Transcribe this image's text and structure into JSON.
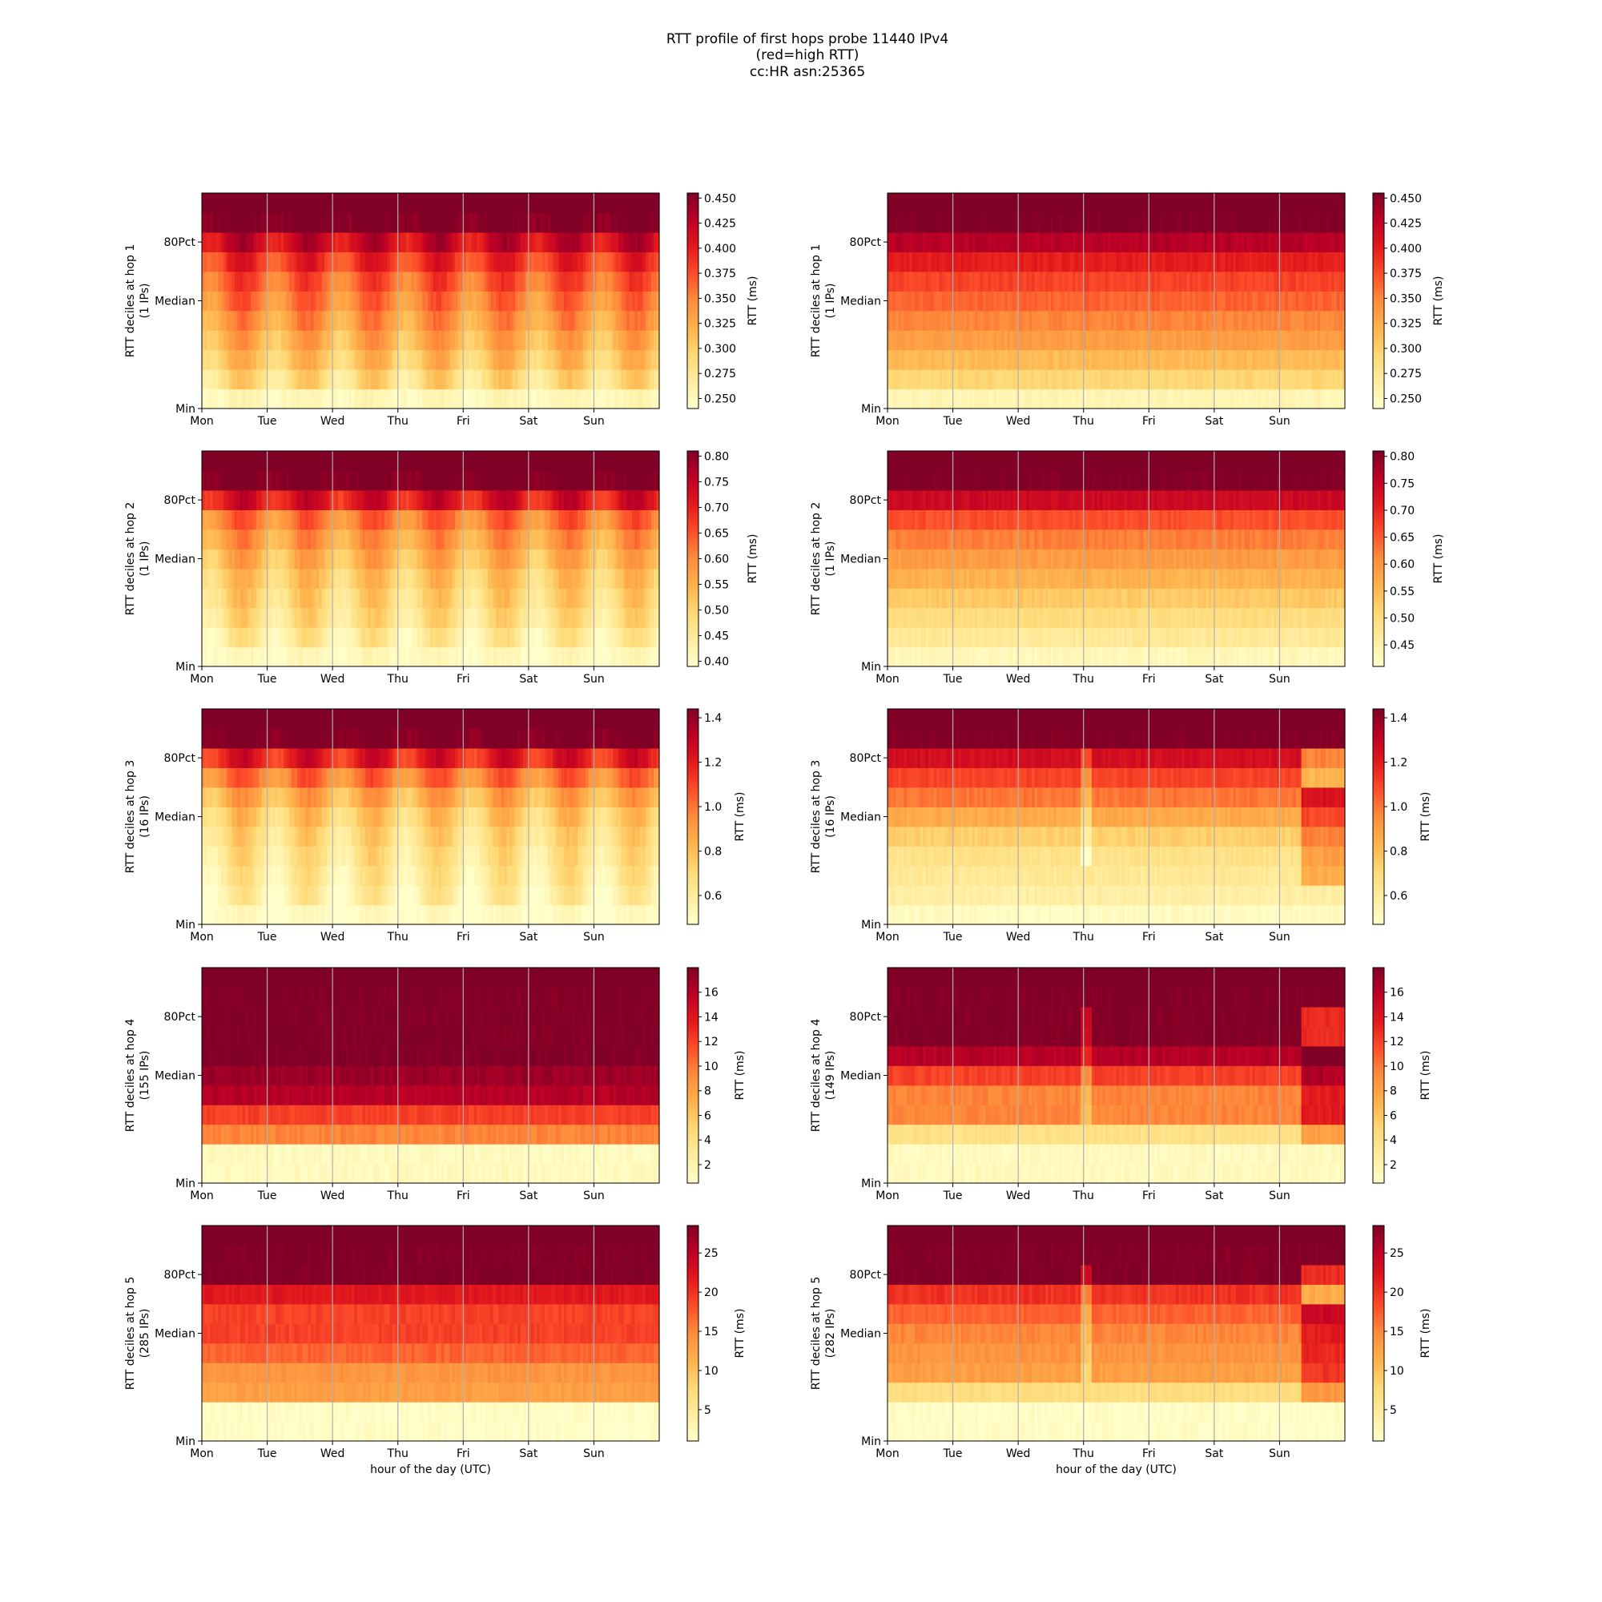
{
  "figure": {
    "title_lines": [
      "RTT profile of first hops probe 11440 IPv4",
      "(red=high RTT)",
      "cc:HR asn:25365"
    ]
  },
  "chart_data": [
    {
      "type": "heatmap",
      "name": "hop1-left",
      "ylabel": [
        "RTT deciles at hop 1",
        "(1 IPs)"
      ],
      "yticks": [
        "80Pct",
        "Median",
        "Min"
      ],
      "xticks": [
        "Mon",
        "Tue",
        "Wed",
        "Thu",
        "Fri",
        "Sat",
        "Sun"
      ],
      "xlabel": "",
      "colorbar": {
        "label": "RTT (ms)",
        "vmin": 0.24,
        "vmax": 0.455,
        "ticks": [
          "0.250",
          "0.275",
          "0.300",
          "0.325",
          "0.350",
          "0.375",
          "0.400",
          "0.425",
          "0.450"
        ]
      },
      "decile_values": [
        0.252,
        0.29,
        0.31,
        0.325,
        0.34,
        0.355,
        0.37,
        0.39,
        0.42,
        0.455
      ],
      "pattern": "diurnal"
    },
    {
      "type": "heatmap",
      "name": "hop1-right",
      "ylabel": [
        "RTT deciles at hop 1",
        "(1 IPs)"
      ],
      "yticks": [
        "80Pct",
        "Median",
        "Min"
      ],
      "xticks": [
        "Mon",
        "Tue",
        "Wed",
        "Thu",
        "Fri",
        "Sat",
        "Sun"
      ],
      "xlabel": "",
      "colorbar": {
        "label": "RTT (ms)",
        "vmin": 0.24,
        "vmax": 0.455,
        "ticks": [
          "0.250",
          "0.275",
          "0.300",
          "0.325",
          "0.350",
          "0.375",
          "0.400",
          "0.425",
          "0.450"
        ]
      },
      "decile_values": [
        0.255,
        0.295,
        0.315,
        0.335,
        0.35,
        0.365,
        0.38,
        0.4,
        0.43,
        0.455
      ],
      "pattern": "flat"
    },
    {
      "type": "heatmap",
      "name": "hop2-left",
      "ylabel": [
        "RTT deciles at hop 2",
        "(1 IPs)"
      ],
      "yticks": [
        "80Pct",
        "Median",
        "Min"
      ],
      "xticks": [
        "Mon",
        "Tue",
        "Wed",
        "Thu",
        "Fri",
        "Sat",
        "Sun"
      ],
      "xlabel": "",
      "colorbar": {
        "label": "RTT (ms)",
        "vmin": 0.39,
        "vmax": 0.81,
        "ticks": [
          "0.40",
          "0.45",
          "0.50",
          "0.55",
          "0.60",
          "0.65",
          "0.70",
          "0.75",
          "0.80"
        ]
      },
      "decile_values": [
        0.41,
        0.45,
        0.48,
        0.5,
        0.52,
        0.55,
        0.58,
        0.62,
        0.72,
        0.81
      ],
      "pattern": "diurnal"
    },
    {
      "type": "heatmap",
      "name": "hop2-right",
      "ylabel": [
        "RTT deciles at hop 2",
        "(1 IPs)"
      ],
      "yticks": [
        "80Pct",
        "Median",
        "Min"
      ],
      "xticks": [
        "Mon",
        "Tue",
        "Wed",
        "Thu",
        "Fri",
        "Sat",
        "Sun"
      ],
      "xlabel": "",
      "colorbar": {
        "label": "RTT (ms)",
        "vmin": 0.41,
        "vmax": 0.81,
        "ticks": [
          "0.45",
          "0.50",
          "0.55",
          "0.60",
          "0.65",
          "0.70",
          "0.75",
          "0.80"
        ]
      },
      "decile_values": [
        0.43,
        0.47,
        0.5,
        0.53,
        0.56,
        0.59,
        0.62,
        0.66,
        0.74,
        0.81
      ],
      "pattern": "flat"
    },
    {
      "type": "heatmap",
      "name": "hop3-left",
      "ylabel": [
        "RTT deciles at hop 3",
        "(16 IPs)"
      ],
      "yticks": [
        "80Pct",
        "Median",
        "Min"
      ],
      "xticks": [
        "Mon",
        "Tue",
        "Wed",
        "Thu",
        "Fri",
        "Sat",
        "Sun"
      ],
      "xlabel": "",
      "colorbar": {
        "label": "RTT (ms)",
        "vmin": 0.47,
        "vmax": 1.44,
        "ticks": [
          "0.6",
          "0.8",
          "1.0",
          "1.2",
          "1.4"
        ]
      },
      "decile_values": [
        0.5,
        0.58,
        0.62,
        0.66,
        0.7,
        0.76,
        0.86,
        1.0,
        1.2,
        1.44
      ],
      "pattern": "diurnal"
    },
    {
      "type": "heatmap",
      "name": "hop3-right",
      "ylabel": [
        "RTT deciles at hop 3",
        "(16 IPs)"
      ],
      "yticks": [
        "80Pct",
        "Median",
        "Min"
      ],
      "xticks": [
        "Mon",
        "Tue",
        "Wed",
        "Thu",
        "Fri",
        "Sat",
        "Sun"
      ],
      "xlabel": "",
      "colorbar": {
        "label": "RTT (ms)",
        "vmin": 0.47,
        "vmax": 1.44,
        "ticks": [
          "0.6",
          "0.8",
          "1.0",
          "1.2",
          "1.4"
        ]
      },
      "decile_values": [
        0.5,
        0.58,
        0.62,
        0.66,
        0.74,
        0.86,
        1.0,
        1.1,
        1.25,
        1.44
      ],
      "pattern": "flat-with-event"
    },
    {
      "type": "heatmap",
      "name": "hop4-left",
      "ylabel": [
        "RTT deciles at hop 4",
        "(155 IPs)"
      ],
      "yticks": [
        "80Pct",
        "Median",
        "Min"
      ],
      "xticks": [
        "Mon",
        "Tue",
        "Wed",
        "Thu",
        "Fri",
        "Sat",
        "Sun"
      ],
      "xlabel": "",
      "colorbar": {
        "label": "RTT (ms)",
        "vmin": 0.5,
        "vmax": 18,
        "ticks": [
          "2",
          "4",
          "6",
          "8",
          "10",
          "12",
          "14",
          "16"
        ]
      },
      "decile_values": [
        1.2,
        1.2,
        9.5,
        12,
        16,
        17,
        18,
        18,
        18,
        18
      ],
      "pattern": "flat"
    },
    {
      "type": "heatmap",
      "name": "hop4-right",
      "ylabel": [
        "RTT deciles at hop 4",
        "(149 IPs)"
      ],
      "yticks": [
        "80Pct",
        "Median",
        "Min"
      ],
      "xticks": [
        "Mon",
        "Tue",
        "Wed",
        "Thu",
        "Fri",
        "Sat",
        "Sun"
      ],
      "xlabel": "",
      "colorbar": {
        "label": "RTT (ms)",
        "vmin": 0.5,
        "vmax": 18,
        "ticks": [
          "2",
          "4",
          "6",
          "8",
          "10",
          "12",
          "14",
          "16"
        ]
      },
      "decile_values": [
        1.2,
        1.2,
        4,
        9.5,
        9.5,
        12,
        16,
        18,
        18,
        18
      ],
      "pattern": "flat-with-event"
    },
    {
      "type": "heatmap",
      "name": "hop5-left",
      "ylabel": [
        "RTT deciles at hop 5",
        "(285 IPs)"
      ],
      "yticks": [
        "80Pct",
        "Median",
        "Min"
      ],
      "xticks": [
        "Mon",
        "Tue",
        "Wed",
        "Thu",
        "Fri",
        "Sat",
        "Sun"
      ],
      "xlabel": "hour of the day (UTC)",
      "colorbar": {
        "label": "RTT (ms)",
        "vmin": 1,
        "vmax": 28.5,
        "ticks": [
          "5",
          "10",
          "15",
          "20",
          "25"
        ]
      },
      "decile_values": [
        1.5,
        1.5,
        13,
        14,
        17,
        19,
        19,
        22,
        28.5,
        28.5
      ],
      "pattern": "flat"
    },
    {
      "type": "heatmap",
      "name": "hop5-right",
      "ylabel": [
        "RTT deciles at hop 5",
        "(282 IPs)"
      ],
      "yticks": [
        "80Pct",
        "Median",
        "Min"
      ],
      "xticks": [
        "Mon",
        "Tue",
        "Wed",
        "Thu",
        "Fri",
        "Sat",
        "Sun"
      ],
      "xlabel": "hour of the day (UTC)",
      "colorbar": {
        "label": "RTT (ms)",
        "vmin": 1,
        "vmax": 28.5,
        "ticks": [
          "5",
          "10",
          "15",
          "20",
          "25"
        ]
      },
      "decile_values": [
        1.5,
        1.5,
        7,
        13,
        14,
        15,
        17,
        20,
        28.5,
        28.5
      ],
      "pattern": "flat-with-event"
    }
  ]
}
